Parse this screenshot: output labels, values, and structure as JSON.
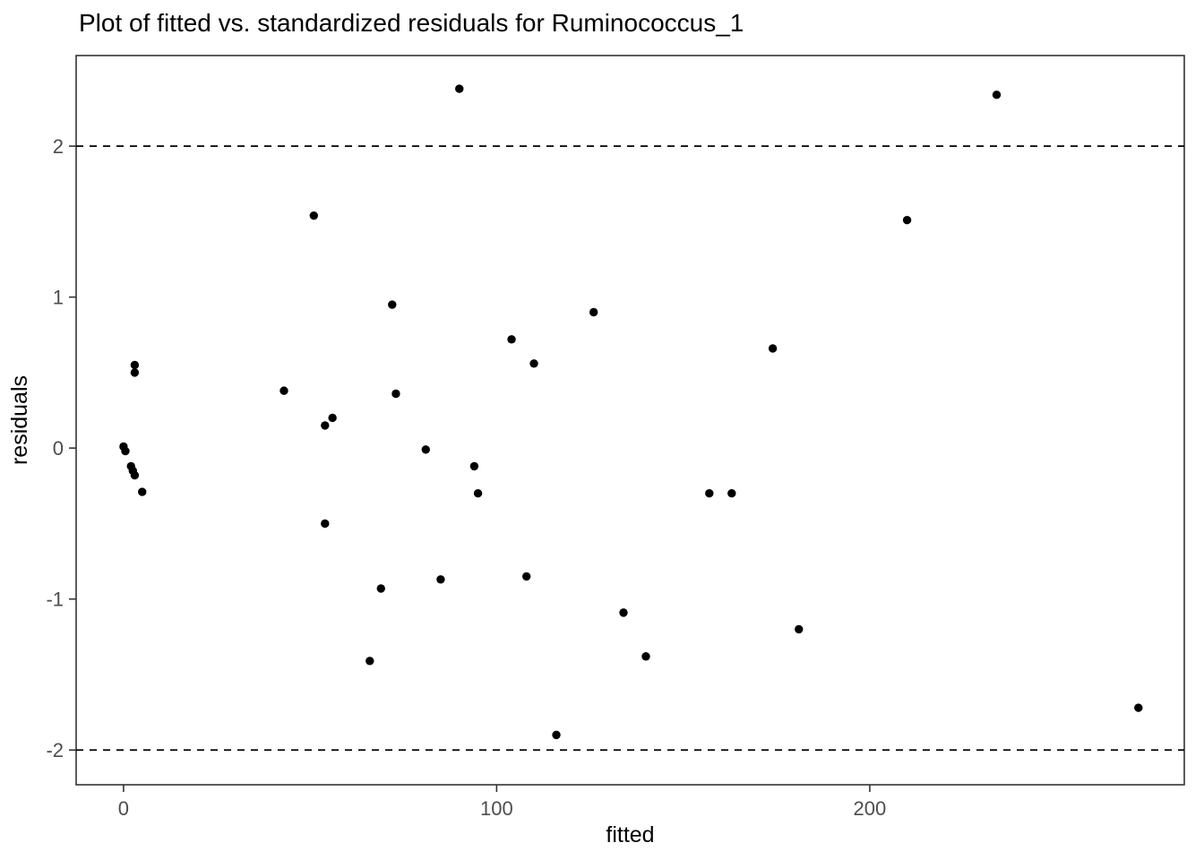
{
  "chart_data": {
    "type": "scatter",
    "title": "Plot of fitted vs. standardized residuals for Ruminococcus_1",
    "xlabel": "fitted",
    "ylabel": "residuals",
    "xlim": [
      -12.7,
      284.3
    ],
    "ylim": [
      -2.23,
      2.6
    ],
    "x_ticks": [
      0,
      100,
      200
    ],
    "y_ticks": [
      -2,
      -1,
      0,
      1,
      2
    ],
    "grid": false,
    "legend": false,
    "reference_lines": [
      {
        "y": 2,
        "style": "dashed"
      },
      {
        "y": -2,
        "style": "dashed"
      }
    ],
    "points": [
      [
        90,
        2.38
      ],
      [
        234,
        2.34
      ],
      [
        51,
        1.54
      ],
      [
        210,
        1.51
      ],
      [
        72,
        0.95
      ],
      [
        126,
        0.9
      ],
      [
        104,
        0.72
      ],
      [
        174,
        0.66
      ],
      [
        110,
        0.56
      ],
      [
        3,
        0.55
      ],
      [
        3,
        0.5
      ],
      [
        43,
        0.38
      ],
      [
        73,
        0.36
      ],
      [
        56,
        0.2
      ],
      [
        54,
        0.15
      ],
      [
        81,
        -0.01
      ],
      [
        0,
        0.01
      ],
      [
        0.5,
        -0.02
      ],
      [
        2,
        -0.12
      ],
      [
        2.5,
        -0.15
      ],
      [
        3,
        -0.18
      ],
      [
        94,
        -0.12
      ],
      [
        95,
        -0.3
      ],
      [
        157,
        -0.3
      ],
      [
        163,
        -0.3
      ],
      [
        5,
        -0.29
      ],
      [
        54,
        -0.5
      ],
      [
        108,
        -0.85
      ],
      [
        85,
        -0.87
      ],
      [
        69,
        -0.93
      ],
      [
        134,
        -1.09
      ],
      [
        181,
        -1.2
      ],
      [
        140,
        -1.38
      ],
      [
        66,
        -1.41
      ],
      [
        272,
        -1.72
      ],
      [
        116,
        -1.9
      ]
    ],
    "point_color": "#000000",
    "reference_line_color": "#000000",
    "tick_label_color": "#4d4d4d",
    "tick_mark_color": "#333333",
    "panel_border_color": "#333333",
    "panel_background": "#ffffff"
  }
}
